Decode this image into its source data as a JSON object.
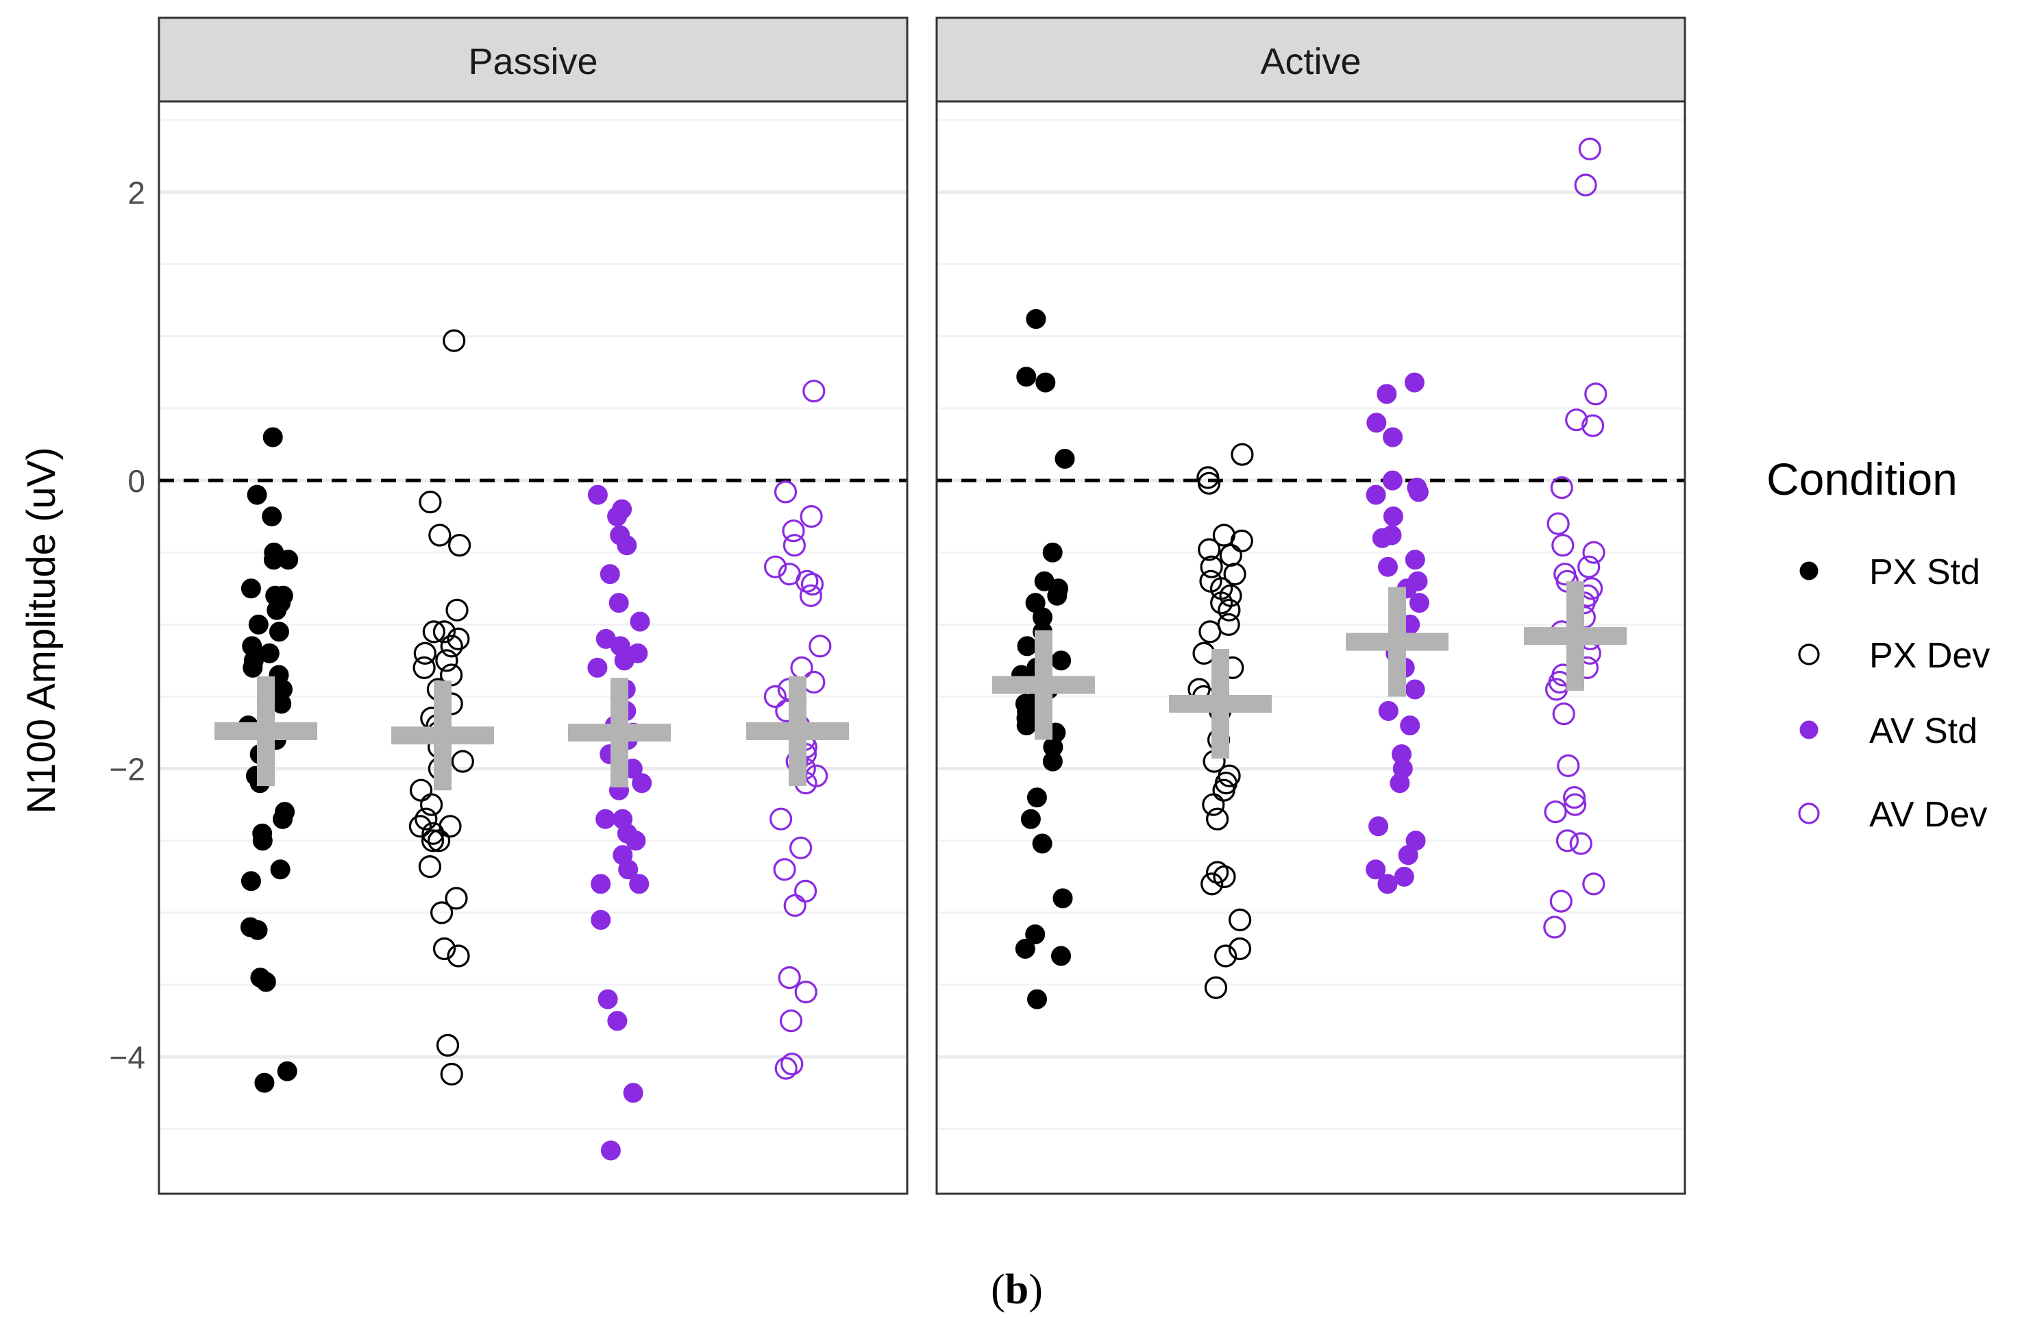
{
  "chart_data": {
    "type": "scatter",
    "ylabel": "N100 Amplitude (uV)",
    "xlabel": "",
    "ylim": [
      -4.95,
      2.63
    ],
    "yticks": [
      2,
      0,
      -2,
      -4
    ],
    "ytick_labels": [
      "2",
      "0",
      "−2",
      "−4"
    ],
    "zero_line": 0,
    "grid": true,
    "legend": {
      "title": "Condition",
      "placement": "right",
      "entries": [
        {
          "label": "PX Std",
          "color": "#000000",
          "filled": true
        },
        {
          "label": "PX Dev",
          "color": "#000000",
          "filled": false
        },
        {
          "label": "AV Std",
          "color": "#8a2be2",
          "filled": true
        },
        {
          "label": "AV Dev",
          "color": "#8a2be2",
          "filled": false
        }
      ]
    },
    "mean_marker_color": "#b3b3b3",
    "panels": [
      {
        "title": "Passive",
        "groups": [
          {
            "condition": "PX Std",
            "mean": -1.74,
            "values": [
              0.3,
              -0.1,
              -0.25,
              -0.55,
              -0.5,
              -0.55,
              -0.75,
              -0.8,
              -0.8,
              -0.85,
              -0.9,
              -1.0,
              -1.05,
              -1.15,
              -1.2,
              -1.25,
              -1.3,
              -1.35,
              -1.45,
              -1.55,
              -1.7,
              -1.75,
              -1.8,
              -1.9,
              -2.05,
              -2.1,
              -2.3,
              -2.35,
              -2.45,
              -2.5,
              -2.7,
              -2.78,
              -3.1,
              -3.12,
              -3.45,
              -3.48,
              -4.1,
              -4.18
            ]
          },
          {
            "condition": "PX Dev",
            "mean": -1.77,
            "values": [
              0.97,
              -0.15,
              -0.38,
              -0.45,
              -0.9,
              -1.05,
              -1.05,
              -1.1,
              -1.15,
              -1.2,
              -1.25,
              -1.3,
              -1.35,
              -1.45,
              -1.55,
              -1.65,
              -1.7,
              -1.75,
              -1.85,
              -1.95,
              -2.0,
              -2.15,
              -2.25,
              -2.35,
              -2.4,
              -2.4,
              -2.45,
              -2.5,
              -2.5,
              -2.68,
              -2.9,
              -3.0,
              -3.25,
              -3.3,
              -3.92,
              -4.12
            ]
          },
          {
            "condition": "AV Std",
            "mean": -1.75,
            "values": [
              -0.1,
              -0.2,
              -0.25,
              -0.38,
              -0.45,
              -0.65,
              -0.85,
              -0.98,
              -1.1,
              -1.15,
              -1.2,
              -1.25,
              -1.3,
              -1.45,
              -1.6,
              -1.7,
              -1.75,
              -1.8,
              -1.9,
              -2.0,
              -2.1,
              -2.15,
              -2.35,
              -2.35,
              -2.45,
              -2.5,
              -2.6,
              -2.7,
              -2.8,
              -2.8,
              -3.05,
              -3.6,
              -3.75,
              -4.25,
              -4.65
            ]
          },
          {
            "condition": "AV Dev",
            "mean": -1.74,
            "values": [
              0.62,
              -0.08,
              -0.25,
              -0.35,
              -0.45,
              -0.6,
              -0.65,
              -0.7,
              -0.72,
              -0.8,
              -1.15,
              -1.3,
              -1.4,
              -1.45,
              -1.5,
              -1.6,
              -1.7,
              -1.8,
              -1.85,
              -1.9,
              -1.95,
              -2.0,
              -2.05,
              -2.1,
              -2.35,
              -2.55,
              -2.7,
              -2.85,
              -2.95,
              -3.45,
              -3.55,
              -3.75,
              -4.05,
              -4.08
            ]
          }
        ]
      },
      {
        "title": "Active",
        "groups": [
          {
            "condition": "PX Std",
            "mean": -1.42,
            "values": [
              1.12,
              0.72,
              0.68,
              0.15,
              -0.5,
              -0.7,
              -0.75,
              -0.8,
              -0.85,
              -0.95,
              -1.05,
              -1.15,
              -1.25,
              -1.3,
              -1.35,
              -1.45,
              -1.5,
              -1.55,
              -1.6,
              -1.65,
              -1.7,
              -1.75,
              -1.85,
              -1.95,
              -2.2,
              -2.35,
              -2.52,
              -2.9,
              -3.15,
              -3.25,
              -3.3,
              -3.6
            ]
          },
          {
            "condition": "PX Dev",
            "mean": -1.55,
            "values": [
              0.18,
              0.02,
              -0.02,
              -0.38,
              -0.42,
              -0.48,
              -0.52,
              -0.6,
              -0.65,
              -0.7,
              -0.75,
              -0.8,
              -0.85,
              -0.9,
              -1.0,
              -1.05,
              -1.2,
              -1.3,
              -1.45,
              -1.5,
              -1.6,
              -1.8,
              -1.95,
              -2.05,
              -2.1,
              -2.15,
              -2.25,
              -2.35,
              -2.72,
              -2.75,
              -2.8,
              -3.05,
              -3.25,
              -3.3,
              -3.52
            ]
          },
          {
            "condition": "AV Std",
            "mean": -1.12,
            "values": [
              0.68,
              0.6,
              0.4,
              0.3,
              0.0,
              -0.05,
              -0.08,
              -0.1,
              -0.25,
              -0.38,
              -0.4,
              -0.55,
              -0.6,
              -0.7,
              -0.75,
              -0.85,
              -1.0,
              -1.2,
              -1.3,
              -1.45,
              -1.6,
              -1.7,
              -1.9,
              -2.0,
              -2.1,
              -2.4,
              -2.5,
              -2.6,
              -2.7,
              -2.75,
              -2.8
            ]
          },
          {
            "condition": "AV Dev",
            "mean": -1.08,
            "values": [
              2.3,
              2.05,
              0.6,
              0.42,
              0.38,
              -0.05,
              -0.3,
              -0.45,
              -0.5,
              -0.6,
              -0.65,
              -0.7,
              -0.75,
              -0.8,
              -0.85,
              -0.95,
              -1.05,
              -1.1,
              -1.2,
              -1.3,
              -1.35,
              -1.4,
              -1.45,
              -1.62,
              -1.98,
              -2.2,
              -2.25,
              -2.3,
              -2.5,
              -2.52,
              -2.8,
              -2.92,
              -3.1
            ]
          }
        ]
      }
    ]
  },
  "caption": {
    "open": "(",
    "letter": "b",
    "close": ")"
  }
}
